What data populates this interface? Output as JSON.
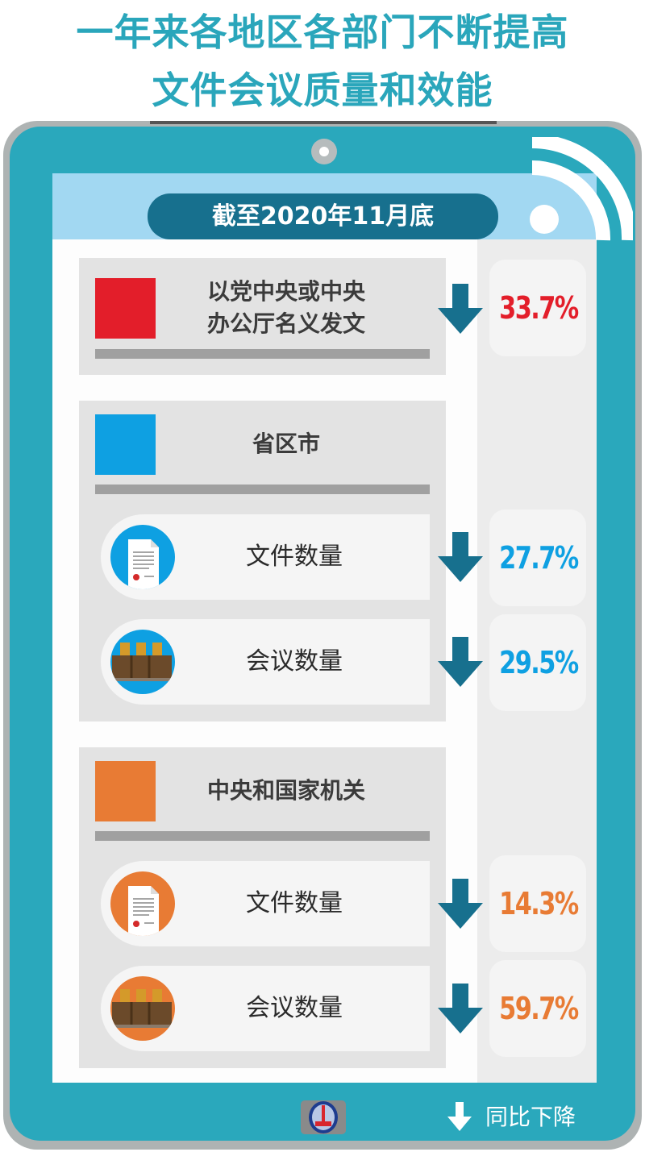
{
  "title": {
    "line1": "一年来各地区各部门不断提高",
    "line2": "文件会议质量和效能"
  },
  "header": {
    "date_label": "截至2020年11月底"
  },
  "colors": {
    "teal": "#2aa8bc",
    "dark_teal": "#17708e",
    "red": "#e31e2a",
    "blue": "#0ea0e2",
    "orange": "#e87b34"
  },
  "sections": [
    {
      "title_line1": "以党中央或中央",
      "title_line2": "办公厅名义发文",
      "color": "#e31e2a",
      "value": "33.7%"
    },
    {
      "title": "省区市",
      "color": "#0ea0e2",
      "items": [
        {
          "label": "文件数量",
          "icon": "document-icon",
          "value": "27.7%"
        },
        {
          "label": "会议数量",
          "icon": "meeting-chairs-icon",
          "value": "29.5%"
        }
      ]
    },
    {
      "title": "中央和国家机关",
      "color": "#e87b34",
      "items": [
        {
          "label": "文件数量",
          "icon": "document-icon",
          "value": "14.3%"
        },
        {
          "label": "会议数量",
          "icon": "meeting-chairs-icon",
          "value": "59.7%"
        }
      ]
    }
  ],
  "legend": {
    "icon": "down-arrow-icon",
    "label": "同比下降"
  },
  "logo": {
    "text": "XINHUA"
  }
}
